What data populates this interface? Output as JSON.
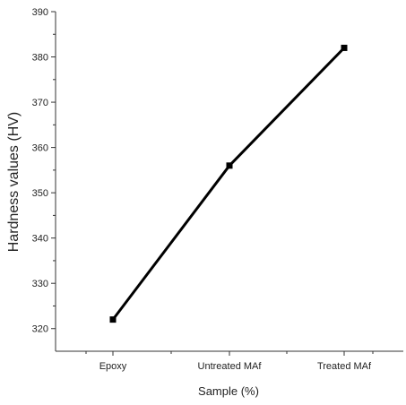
{
  "chart_data": {
    "type": "line",
    "categories": [
      "Epoxy",
      "Untreated MAf",
      "Treated MAf"
    ],
    "series": [
      {
        "values": [
          322,
          356,
          382
        ]
      }
    ],
    "xlabel": "Sample (%)",
    "ylabel": "Hardness values (HV)",
    "ylim": [
      315,
      390
    ],
    "y_ticks": [
      320,
      330,
      340,
      350,
      360,
      370,
      380,
      390
    ],
    "grid": false,
    "legend": "none",
    "colors": {
      "line": "#000000",
      "axis": "#333333",
      "text": "#222222"
    }
  }
}
